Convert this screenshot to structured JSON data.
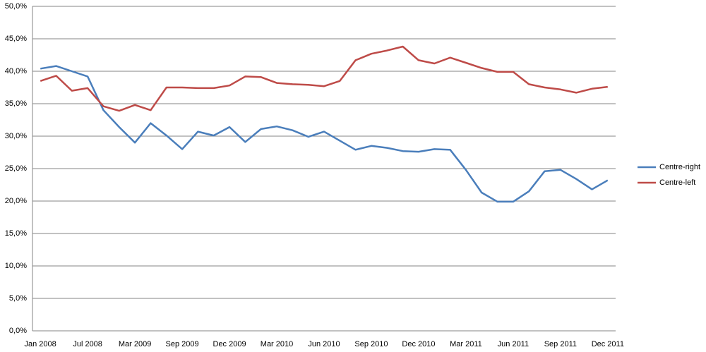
{
  "chart_data": {
    "type": "line",
    "categories": [
      "Jan 2008",
      null,
      null,
      "Jul 2008",
      null,
      null,
      "Mar 2009",
      null,
      null,
      "Sep 2009",
      null,
      null,
      "Dec 2009",
      null,
      null,
      "Mar 2010",
      null,
      null,
      "Jun 2010",
      null,
      null,
      "Sep 2010",
      null,
      null,
      "Dec 2010",
      null,
      null,
      "Mar 2011",
      null,
      null,
      "Jun 2011",
      null,
      null,
      "Sep 2011",
      null,
      null,
      "Dec 2011"
    ],
    "series": [
      {
        "name": "Centre-right",
        "color": "#4a7ebb",
        "values": [
          40.4,
          40.8,
          40.0,
          39.2,
          34.0,
          31.4,
          29.0,
          32.0,
          30.1,
          28.0,
          30.7,
          30.1,
          31.4,
          29.1,
          31.1,
          31.5,
          30.9,
          29.9,
          30.7,
          29.3,
          27.9,
          28.5,
          28.2,
          27.7,
          27.6,
          28.0,
          27.9,
          24.8,
          21.3,
          19.9,
          19.9,
          21.5,
          24.6,
          24.8,
          23.4,
          21.8,
          23.2
        ]
      },
      {
        "name": "Centre-left",
        "color": "#be4b48",
        "values": [
          38.5,
          39.3,
          37.0,
          37.4,
          34.6,
          33.9,
          34.8,
          34.0,
          37.5,
          37.5,
          37.4,
          37.4,
          37.8,
          39.2,
          39.1,
          38.2,
          38.0,
          37.9,
          37.7,
          38.5,
          41.7,
          42.7,
          43.2,
          43.8,
          41.7,
          41.2,
          42.1,
          41.3,
          40.5,
          39.9,
          39.9,
          38.0,
          37.5,
          37.2,
          36.7,
          37.3,
          37.6
        ]
      }
    ],
    "ylim": [
      0,
      50
    ],
    "yticks": [
      {
        "value": 0,
        "label": "0,0%"
      },
      {
        "value": 5,
        "label": "5,0%"
      },
      {
        "value": 10,
        "label": "10,0%"
      },
      {
        "value": 15,
        "label": "15,0%"
      },
      {
        "value": 20,
        "label": "20,0%"
      },
      {
        "value": 25,
        "label": "25,0%"
      },
      {
        "value": 30,
        "label": "30,0%"
      },
      {
        "value": 35,
        "label": "35,0%"
      },
      {
        "value": 40,
        "label": "40,0%"
      },
      {
        "value": 45,
        "label": "45,0%"
      },
      {
        "value": 50,
        "label": "50,0%"
      }
    ],
    "grid": true,
    "legend": "right"
  }
}
